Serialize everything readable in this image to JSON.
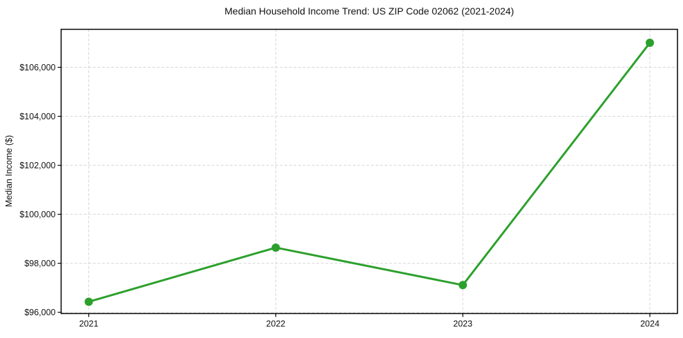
{
  "chart_data": {
    "type": "line",
    "title": "Median Household Income Trend: US ZIP Code 02062 (2021-2024)",
    "xlabel": "",
    "ylabel": "Median Income ($)",
    "categories": [
      "2021",
      "2022",
      "2023",
      "2024"
    ],
    "series": [
      {
        "values": [
          96430,
          98640,
          97110,
          107000
        ],
        "color": "#2ca02c"
      }
    ],
    "ylim": [
      95950,
      107550
    ],
    "yticks": [
      96000,
      98000,
      100000,
      102000,
      104000,
      106000
    ],
    "ytick_labels": [
      "$96,000",
      "$98,000",
      "$100,000",
      "$102,000",
      "$104,000",
      "$106,000"
    ],
    "grid": true,
    "grid_style": "dashed",
    "legend_position": "none",
    "colors": {
      "line": "#2ca02c",
      "marker": "#2ca02c",
      "grid": "#d6d6d6",
      "axis": "#000000",
      "text": "#111111",
      "background": "#ffffff"
    }
  }
}
